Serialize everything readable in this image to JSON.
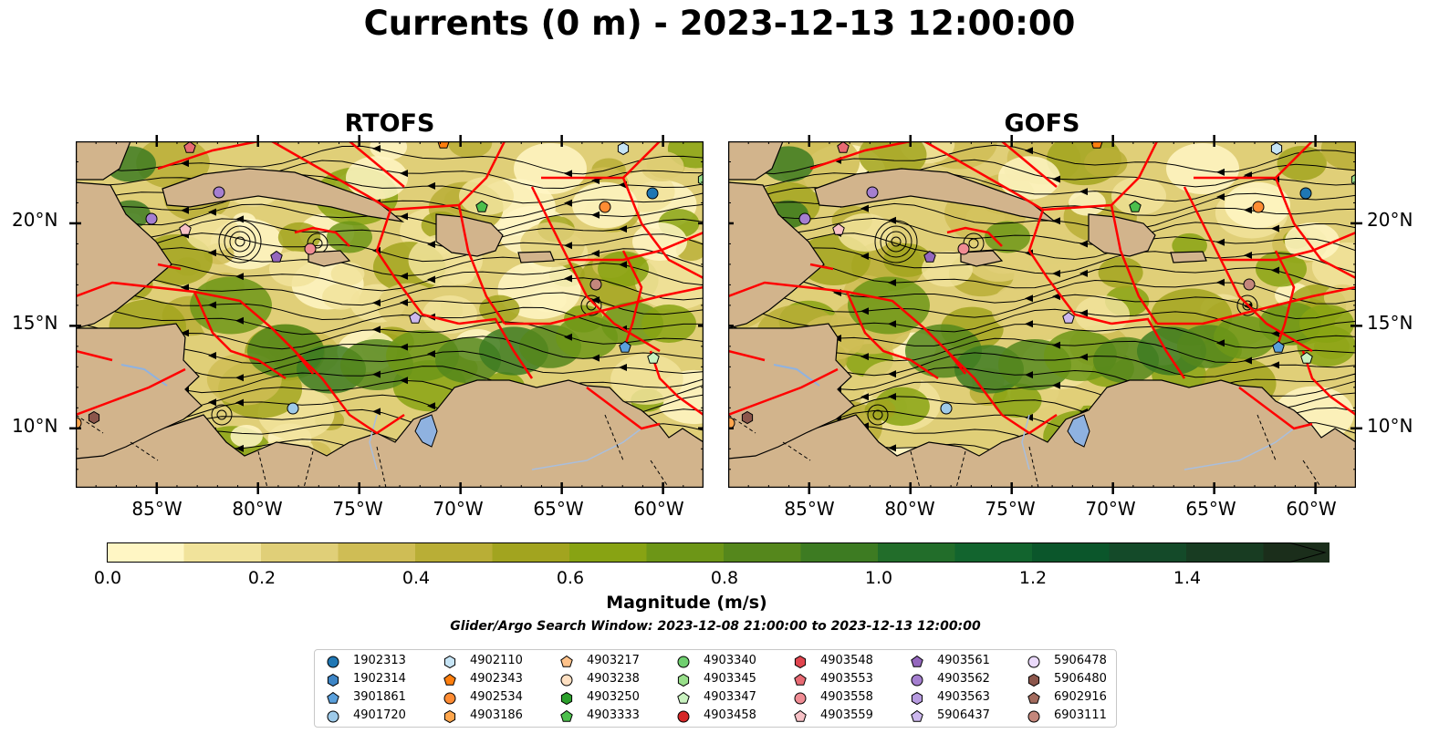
{
  "title": "Currents (0 m) - 2023-12-13 12:00:00",
  "panels": [
    {
      "title": "RTOFS"
    },
    {
      "title": "GOFS"
    }
  ],
  "lat_ticks": [
    "20°N",
    "15°N",
    "10°N"
  ],
  "lon_ticks": [
    "85°W",
    "80°W",
    "75°W",
    "70°W",
    "65°W",
    "60°W"
  ],
  "colorbar": {
    "label": "Magnitude (m/s)",
    "ticks": [
      "0.0",
      "0.2",
      "0.4",
      "0.6",
      "0.8",
      "1.0",
      "1.2",
      "1.4"
    ],
    "colors": [
      "#fff6c4",
      "#f1e39b",
      "#e0cf78",
      "#cfbd55",
      "#b9ae36",
      "#a2a41f",
      "#88a313",
      "#6d9617",
      "#55871c",
      "#3d7b22",
      "#226d2a",
      "#12642e",
      "#0b562b",
      "#144a29",
      "#183c22",
      "#1b2e1b"
    ]
  },
  "search_window": "Glider/Argo Search Window: 2023-12-08 21:00:00 to 2023-12-13 12:00:00",
  "colors": {
    "land": "#d2b48c",
    "boundary": "#ff0000",
    "lake": "#8fb2e0"
  },
  "legend": [
    {
      "label": "1902313",
      "shape": "circle",
      "color": "#1f77b4"
    },
    {
      "label": "1902314",
      "shape": "hexagon",
      "color": "#3d85c6"
    },
    {
      "label": "3901861",
      "shape": "pentagon",
      "color": "#5aa0dc"
    },
    {
      "label": "4901720",
      "shape": "circle",
      "color": "#9ecae9"
    },
    {
      "label": "4902110",
      "shape": "hexagon",
      "color": "#c6e4f5"
    },
    {
      "label": "4902343",
      "shape": "pentagon",
      "color": "#ff7f0e"
    },
    {
      "label": "4902534",
      "shape": "circle",
      "color": "#ff8c33"
    },
    {
      "label": "4903186",
      "shape": "hexagon",
      "color": "#ffa64d"
    },
    {
      "label": "4903217",
      "shape": "pentagon",
      "color": "#ffc28a"
    },
    {
      "label": "4903238",
      "shape": "circle",
      "color": "#ffe0c2"
    },
    {
      "label": "4903250",
      "shape": "hexagon",
      "color": "#2ca02c"
    },
    {
      "label": "4903333",
      "shape": "pentagon",
      "color": "#4cbf4c"
    },
    {
      "label": "4903340",
      "shape": "circle",
      "color": "#6fcf6f"
    },
    {
      "label": "4903345",
      "shape": "hexagon",
      "color": "#98df8a"
    },
    {
      "label": "4903347",
      "shape": "pentagon",
      "color": "#c9f2c0"
    },
    {
      "label": "4903458",
      "shape": "circle",
      "color": "#d62728"
    },
    {
      "label": "4903548",
      "shape": "hexagon",
      "color": "#e0454f"
    },
    {
      "label": "4903553",
      "shape": "pentagon",
      "color": "#e86a73"
    },
    {
      "label": "4903558",
      "shape": "circle",
      "color": "#f08c94"
    },
    {
      "label": "4903559",
      "shape": "pentagon",
      "color": "#f7c1c6"
    },
    {
      "label": "4903561",
      "shape": "pentagon",
      "color": "#9467bd"
    },
    {
      "label": "4903562",
      "shape": "circle",
      "color": "#a57fd0"
    },
    {
      "label": "4903563",
      "shape": "hexagon",
      "color": "#b79be0"
    },
    {
      "label": "5906437",
      "shape": "pentagon",
      "color": "#cdb8ee"
    },
    {
      "label": "5906478",
      "shape": "circle",
      "color": "#ead9fb"
    },
    {
      "label": "5906480",
      "shape": "hexagon",
      "color": "#8c564b"
    },
    {
      "label": "6902916",
      "shape": "pentagon",
      "color": "#a36b5e"
    },
    {
      "label": "6903111",
      "shape": "circle",
      "color": "#c4877c"
    }
  ]
}
